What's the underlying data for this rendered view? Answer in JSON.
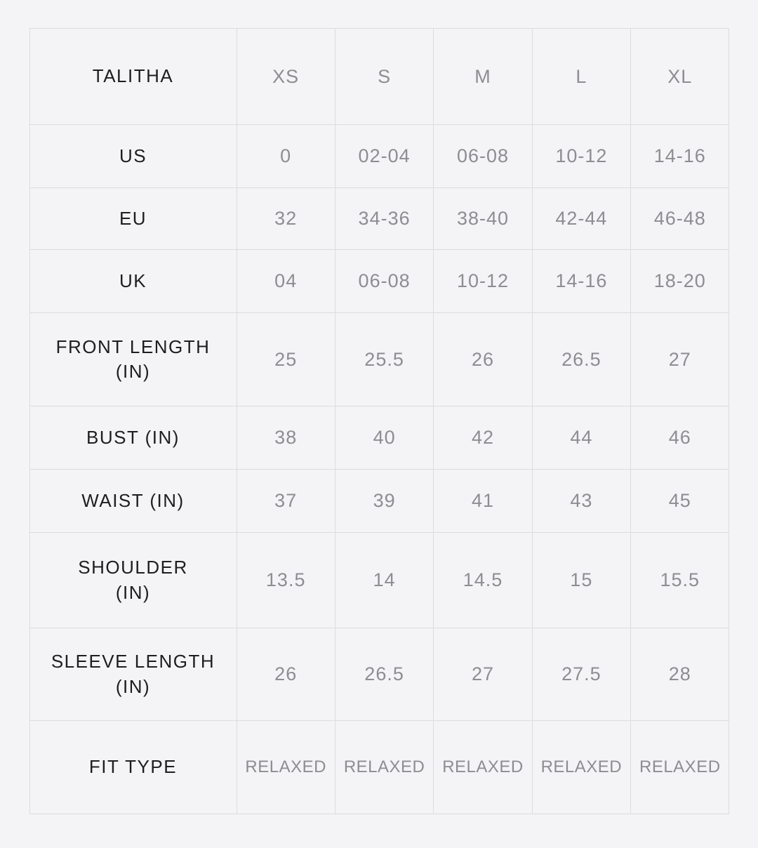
{
  "size_chart": {
    "brand": "TALITHA",
    "columns": [
      "XS",
      "S",
      "M",
      "L",
      "XL"
    ],
    "rows": [
      {
        "label": "US",
        "values": [
          "0",
          "02-04",
          "06-08",
          "10-12",
          "14-16"
        ]
      },
      {
        "label": "EU",
        "values": [
          "32",
          "34-36",
          "38-40",
          "42-44",
          "46-48"
        ]
      },
      {
        "label": "UK",
        "values": [
          "04",
          "06-08",
          "10-12",
          "14-16",
          "18-20"
        ]
      },
      {
        "label": "FRONT LENGTH\n(IN)",
        "values": [
          "25",
          "25.5",
          "26",
          "26.5",
          "27"
        ]
      },
      {
        "label": "BUST (IN)",
        "values": [
          "38",
          "40",
          "42",
          "44",
          "46"
        ]
      },
      {
        "label": "WAIST (IN)",
        "values": [
          "37",
          "39",
          "41",
          "43",
          "45"
        ]
      },
      {
        "label": "SHOULDER\n(IN)",
        "values": [
          "13.5",
          "14",
          "14.5",
          "15",
          "15.5"
        ]
      },
      {
        "label": "SLEEVE LENGTH\n(IN)",
        "values": [
          "26",
          "26.5",
          "27",
          "27.5",
          "28"
        ]
      },
      {
        "label": "FIT TYPE",
        "values": [
          "RELAXED",
          "RELAXED",
          "RELAXED",
          "RELAXED",
          "RELAXED"
        ]
      }
    ],
    "colors": {
      "background": "#f4f4f6",
      "border": "#dcdcdf",
      "label_text": "#1e1e21",
      "value_text": "#8d8d92"
    }
  }
}
